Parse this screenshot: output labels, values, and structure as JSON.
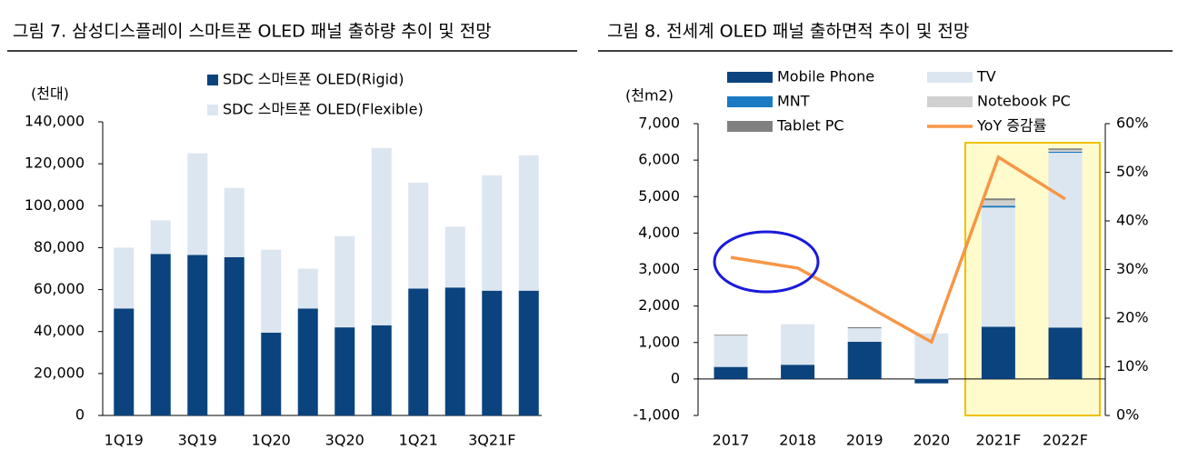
{
  "chart_data": [
    {
      "type": "bar",
      "title": "그림 7. 삼성디스플레이 스마트폰 OLED 패널 출하량 추이 및 전망",
      "y_label": "(천대)",
      "stacked": true,
      "categories": [
        "1Q19",
        null,
        "3Q19",
        null,
        "1Q20",
        null,
        "3Q20",
        null,
        "1Q21",
        null,
        "3Q21F",
        null
      ],
      "series": [
        {
          "name": "SDC 스마트폰 OLED(Rigid)",
          "color": "#0b437f",
          "values": [
            51000,
            77000,
            76500,
            75500,
            39500,
            51000,
            42000,
            43000,
            60500,
            61000,
            59500,
            59500
          ]
        },
        {
          "name": "SDC 스마트폰 OLED(Flexible)",
          "color": "#dce6f1",
          "values": [
            29000,
            16000,
            48500,
            33000,
            39500,
            19000,
            43500,
            84500,
            50500,
            29000,
            55000,
            64500
          ]
        }
      ],
      "ylim": [
        0,
        140000
      ],
      "yticks": [
        0,
        {
          "value": 20000,
          "label": "20,000"
        },
        {
          "value": 40000,
          "label": "40,000"
        },
        {
          "value": 60000,
          "label": "60,000"
        },
        {
          "value": 80000,
          "label": "80,000"
        },
        {
          "value": 100000,
          "label": "100,000"
        },
        {
          "value": 120000,
          "label": "120,000"
        },
        {
          "value": 140000,
          "label": "140,000"
        }
      ],
      "grid": false
    },
    {
      "type": "bar",
      "title": "그림 8. 전세계 OLED 패널 출하면적 추이 및 전망",
      "y_label": "(천m2)",
      "stacked": true,
      "categories": [
        "2017",
        "2018",
        "2019",
        "2020",
        "2021F",
        "2022F"
      ],
      "series": [
        {
          "name": "Mobile Phone",
          "color": "#0b437f",
          "values": [
            330,
            390,
            1020,
            -120,
            1430,
            1410
          ]
        },
        {
          "name": "TV",
          "color": "#dce6f1",
          "values": [
            860,
            1110,
            370,
            1250,
            3270,
            4790
          ]
        },
        {
          "name": "MNT",
          "color": "#1a7ac4",
          "values": [
            0,
            0,
            0,
            0,
            50,
            30
          ]
        },
        {
          "name": "Notebook PC",
          "color": "#d0d0d0",
          "values": [
            0,
            0,
            0,
            0,
            150,
            50
          ]
        },
        {
          "name": "Tablet PC",
          "color": "#808080",
          "values": [
            20,
            0,
            30,
            0,
            50,
            40
          ]
        },
        {
          "name": "YoY 증감률",
          "color": "#f79646",
          "type": "line",
          "axis": "y2",
          "values": [
            32.5,
            30.3,
            22.8,
            15.1,
            53.1,
            44.5
          ]
        }
      ],
      "ylim": [
        -1000,
        7000
      ],
      "yticks": [
        {
          "value": -1000,
          "label": "-1,000"
        },
        0,
        {
          "value": 1000,
          "label": "1,000"
        },
        {
          "value": 2000,
          "label": "2,000"
        },
        {
          "value": 3000,
          "label": "3,000"
        },
        {
          "value": 4000,
          "label": "4,000"
        },
        {
          "value": 5000,
          "label": "5,000"
        },
        {
          "value": 6000,
          "label": "6,000"
        },
        {
          "value": 7000,
          "label": "7,000"
        }
      ],
      "y2lim": [
        0,
        60
      ],
      "y2ticks": [
        {
          "value": 0,
          "label": "0%"
        },
        {
          "value": 10,
          "label": "10%"
        },
        {
          "value": 20,
          "label": "20%"
        },
        {
          "value": 30,
          "label": "30%"
        },
        {
          "value": 40,
          "label": "40%"
        },
        {
          "value": 50,
          "label": "50%"
        },
        {
          "value": 60,
          "label": "60%"
        }
      ],
      "grid": false
    }
  ]
}
